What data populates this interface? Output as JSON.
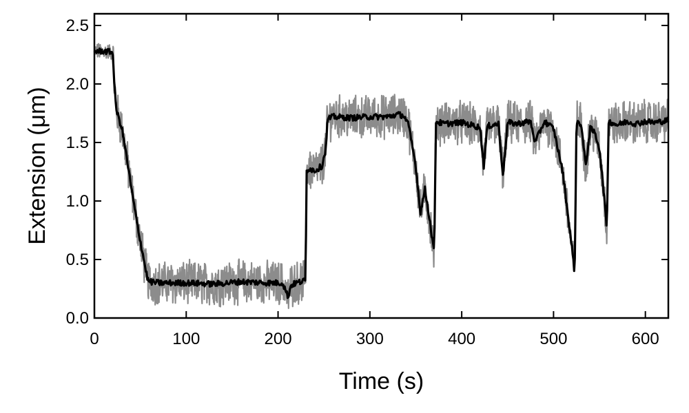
{
  "chart_data": {
    "type": "line",
    "title": "",
    "xlabel": "Time (s)",
    "ylabel": "Extension (μm)",
    "xlim": [
      0,
      625
    ],
    "ylim": [
      0,
      2.6
    ],
    "xticks": [
      0,
      100,
      200,
      300,
      400,
      500,
      600
    ],
    "xtick_labels": [
      "0",
      "100",
      "200",
      "300",
      "400",
      "500",
      "600"
    ],
    "yticks": [
      0.0,
      0.5,
      1.0,
      1.5,
      2.0,
      2.5
    ],
    "ytick_labels": [
      "0.0",
      "0.5",
      "1.0",
      "1.5",
      "2.0",
      "2.5"
    ],
    "grid": false,
    "legend": "none",
    "colors": {
      "mean_trace": "#000000",
      "raw_trace": "#8c8c8c"
    },
    "series": [
      {
        "x": [
          0,
          10,
          20,
          22,
          24,
          26,
          30,
          35,
          40,
          45,
          50,
          55,
          58,
          60,
          70,
          100,
          130,
          160,
          190,
          205,
          208,
          211,
          214,
          220,
          230,
          231,
          233,
          240,
          248,
          252,
          254,
          260,
          280,
          300,
          320,
          330,
          337,
          342,
          350,
          355,
          360,
          365,
          370,
          372,
          380,
          400,
          420,
          424,
          428,
          440,
          445,
          450,
          460,
          475,
          480,
          490,
          500,
          510,
          520,
          523,
          525,
          530,
          535,
          540,
          545,
          550,
          555,
          558,
          560,
          570,
          580,
          590,
          600,
          610,
          625
        ],
        "y": [
          2.28,
          2.28,
          2.27,
          1.95,
          1.78,
          1.72,
          1.62,
          1.38,
          1.12,
          0.88,
          0.66,
          0.45,
          0.33,
          0.31,
          0.3,
          0.3,
          0.29,
          0.31,
          0.3,
          0.3,
          0.24,
          0.18,
          0.28,
          0.3,
          0.32,
          1.25,
          1.28,
          1.26,
          1.3,
          1.45,
          1.7,
          1.72,
          1.71,
          1.72,
          1.72,
          1.74,
          1.73,
          1.65,
          1.3,
          0.9,
          1.1,
          0.85,
          0.55,
          1.68,
          1.66,
          1.67,
          1.63,
          1.3,
          1.64,
          1.66,
          1.22,
          1.67,
          1.66,
          1.68,
          1.5,
          1.68,
          1.62,
          1.25,
          0.6,
          0.38,
          1.68,
          1.66,
          1.3,
          1.62,
          1.58,
          1.45,
          1.05,
          0.75,
          1.68,
          1.65,
          1.68,
          1.66,
          1.68,
          1.67,
          1.69
        ]
      }
    ]
  }
}
